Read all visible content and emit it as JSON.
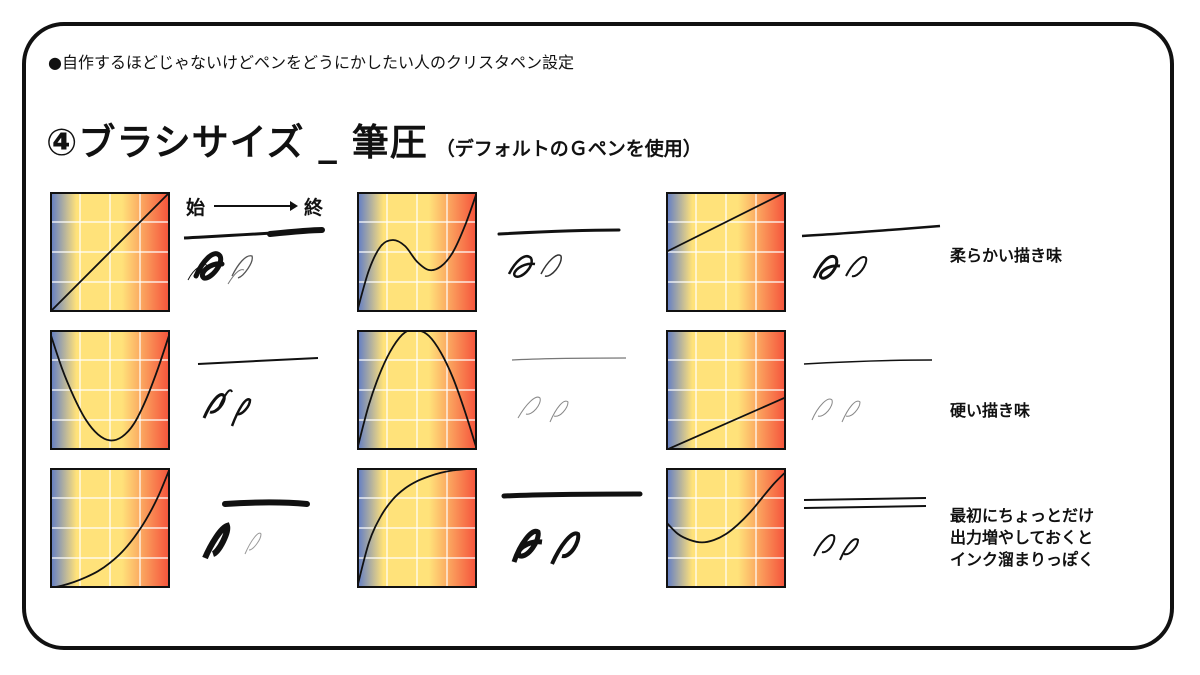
{
  "header": {
    "text": "●自作するほどじゃないけどペンをどうにかしたい人のクリスタペン設定"
  },
  "title": {
    "main": "④ブラシサイズ _ 筆圧",
    "sub": "（デフォルトのＧペンを使用）"
  },
  "legend": {
    "start": "始",
    "end": "終"
  },
  "colors": {
    "gradient_left": "#5b79c9",
    "gradient_mid": "#ffe27a",
    "gradient_right": "#f5503a",
    "frame": "#111111",
    "grid": "#ffffff"
  },
  "rows": [
    {
      "caption_lines": [
        "柔らかい描き味"
      ]
    },
    {
      "caption_lines": [
        "硬い描き味"
      ]
    },
    {
      "caption_lines": [
        "最初にちょっとだけ",
        "出力増やしておくと",
        "インク溜まりっぽく"
      ]
    }
  ],
  "chart_data": {
    "type": "line",
    "x_range": [
      0,
      1
    ],
    "y_range": [
      0,
      1
    ],
    "grid": true,
    "panels": [
      {
        "row": 1,
        "col": 1,
        "x": [
          0,
          0.5,
          1
        ],
        "y": [
          0,
          0.5,
          1
        ]
      },
      {
        "row": 1,
        "col": 2,
        "x": [
          0,
          0.1,
          0.2,
          0.3,
          0.4,
          0.5,
          0.6,
          0.7,
          0.8,
          0.9,
          1
        ],
        "y": [
          0,
          0.35,
          0.55,
          0.6,
          0.55,
          0.42,
          0.35,
          0.38,
          0.5,
          0.72,
          1
        ]
      },
      {
        "row": 1,
        "col": 3,
        "x": [
          0,
          0.5,
          1
        ],
        "y": [
          0.5,
          0.75,
          1
        ]
      },
      {
        "row": 2,
        "col": 1,
        "x": [
          0,
          0.1,
          0.2,
          0.3,
          0.4,
          0.5,
          0.6,
          0.7,
          0.8,
          0.9,
          1
        ],
        "y": [
          0.98,
          0.68,
          0.44,
          0.25,
          0.13,
          0.08,
          0.11,
          0.22,
          0.42,
          0.68,
          0.98
        ]
      },
      {
        "row": 2,
        "col": 2,
        "x": [
          0,
          0.1,
          0.2,
          0.3,
          0.4,
          0.5,
          0.6,
          0.7,
          0.8,
          0.9,
          1
        ],
        "y": [
          0,
          0.38,
          0.66,
          0.86,
          0.98,
          1.0,
          0.95,
          0.81,
          0.6,
          0.32,
          0
        ]
      },
      {
        "row": 2,
        "col": 3,
        "x": [
          0,
          0.5,
          1
        ],
        "y": [
          0,
          0.22,
          0.44
        ]
      },
      {
        "row": 3,
        "col": 1,
        "x": [
          0,
          0.1,
          0.2,
          0.3,
          0.4,
          0.5,
          0.6,
          0.7,
          0.8,
          0.9,
          1
        ],
        "y": [
          0,
          0.02,
          0.05,
          0.09,
          0.14,
          0.21,
          0.3,
          0.42,
          0.57,
          0.76,
          1
        ]
      },
      {
        "row": 3,
        "col": 2,
        "x": [
          0,
          0.1,
          0.2,
          0.3,
          0.4,
          0.5,
          0.6,
          0.7,
          0.8,
          0.9,
          1
        ],
        "y": [
          0,
          0.38,
          0.6,
          0.74,
          0.83,
          0.89,
          0.93,
          0.96,
          0.98,
          0.99,
          1
        ]
      },
      {
        "row": 3,
        "col": 3,
        "x": [
          0,
          0.1,
          0.2,
          0.3,
          0.4,
          0.5,
          0.6,
          0.7,
          0.8,
          0.9,
          1
        ],
        "y": [
          0.55,
          0.45,
          0.4,
          0.38,
          0.4,
          0.45,
          0.53,
          0.63,
          0.75,
          0.87,
          0.97
        ]
      }
    ]
  }
}
